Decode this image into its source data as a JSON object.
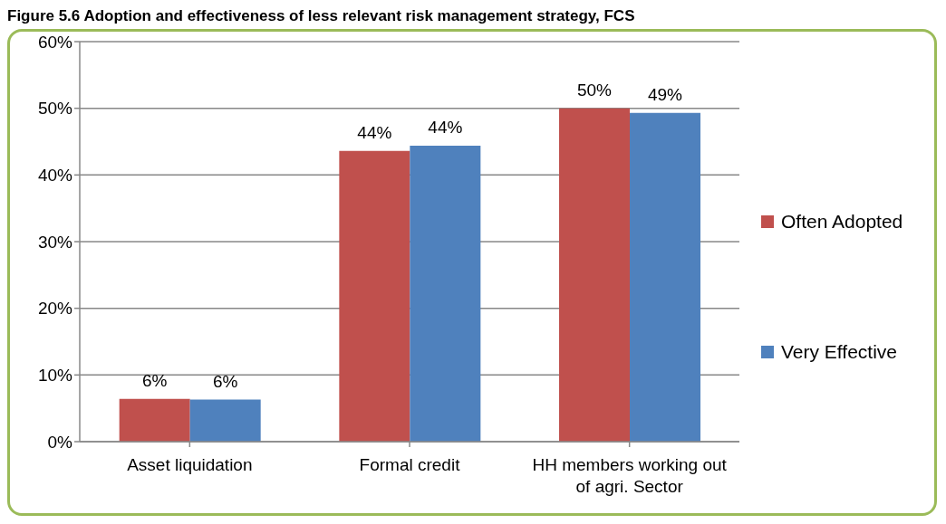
{
  "chart_data": {
    "type": "bar",
    "title": "Figure 5.6 Adoption and effectiveness of less relevant risk management strategy, FCS",
    "categories": [
      "Asset liquidation",
      "Formal credit",
      "HH members working out of agri. Sector"
    ],
    "series": [
      {
        "name": "Often Adopted",
        "color": "#c0504d",
        "values": [
          6.4,
          43.6,
          50
        ],
        "value_labels": [
          "6%",
          "44%",
          "50%"
        ]
      },
      {
        "name": "Very Effective",
        "color": "#4f81bd",
        "values": [
          6.3,
          44.4,
          49.3
        ],
        "value_labels": [
          "6%",
          "44%",
          "49%"
        ]
      }
    ],
    "ylim": [
      0,
      60
    ],
    "yticks": [
      {
        "value": 0,
        "label": "0%"
      },
      {
        "value": 10,
        "label": "10%"
      },
      {
        "value": 20,
        "label": "20%"
      },
      {
        "value": 30,
        "label": "30%"
      },
      {
        "value": 40,
        "label": "40%"
      },
      {
        "value": 50,
        "label": "50%"
      },
      {
        "value": 60,
        "label": "60%"
      }
    ],
    "grid": "y",
    "legend": "right"
  }
}
